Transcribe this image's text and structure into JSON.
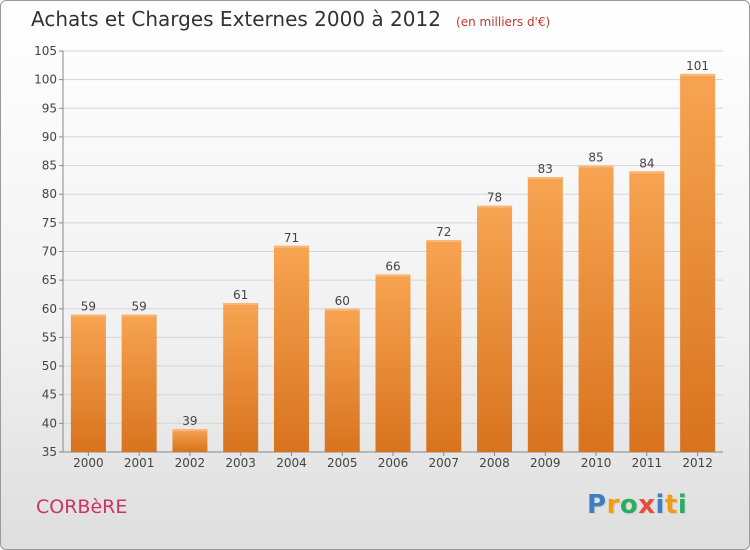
{
  "chart_data": {
    "type": "bar",
    "title": "Achats et Charges Externes 2000 à 2012",
    "subtitle": "(en milliers d'€)",
    "categories": [
      "2000",
      "2001",
      "2002",
      "2003",
      "2004",
      "2005",
      "2006",
      "2007",
      "2008",
      "2009",
      "2010",
      "2011",
      "2012"
    ],
    "values": [
      59,
      59,
      39,
      61,
      71,
      60,
      66,
      72,
      78,
      83,
      85,
      84,
      101
    ],
    "ylim": [
      35,
      105
    ],
    "yticks": [
      35,
      40,
      45,
      50,
      55,
      60,
      65,
      70,
      75,
      80,
      85,
      90,
      95,
      100,
      105
    ],
    "grid": true,
    "bar_color_top": "#f7a452",
    "bar_color_bottom": "#d8731e",
    "grid_color": "#d5d5d5"
  },
  "commune": "CORBèRE",
  "logo": {
    "letters": [
      "P",
      "r",
      "o",
      "x",
      "i",
      "t",
      "i"
    ],
    "colors": [
      "#3d7fc4",
      "#f39c12",
      "#27ae60",
      "#e74c3c",
      "#3d7fc4",
      "#f39c12",
      "#27ae60"
    ]
  },
  "commune_color": "#cc3366"
}
